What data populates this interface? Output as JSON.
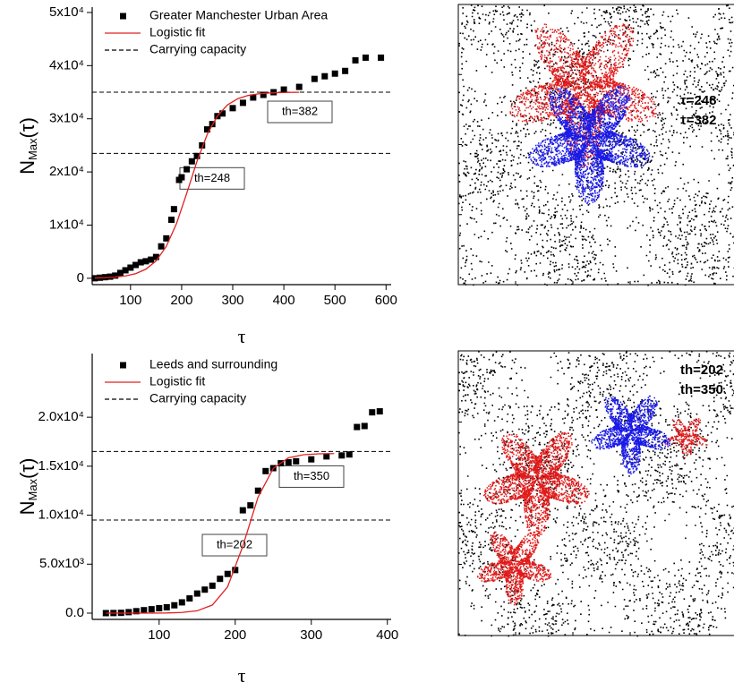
{
  "chart_data": [
    {
      "type": "scatter",
      "x_label": "τ",
      "y_label": "N",
      "y_label_sub": "Max",
      "y_label_suffix": "(τ)",
      "xlim": [
        25,
        610
      ],
      "ylim": [
        -1200,
        51000
      ],
      "xticks": [
        100,
        200,
        300,
        400,
        500,
        600
      ],
      "yticks": [
        {
          "value": 0,
          "label": "0"
        },
        {
          "value": 10000,
          "label": "1x10⁴"
        },
        {
          "value": 20000,
          "label": "2x10⁴"
        },
        {
          "value": 30000,
          "label": "3x10⁴"
        },
        {
          "value": 40000,
          "label": "4x10⁴"
        },
        {
          "value": 50000,
          "label": "5x10⁴"
        }
      ],
      "series": [
        {
          "name": "Greater Manchester Urban Area",
          "color": "#000000",
          "marker": "square",
          "x": [
            30,
            40,
            50,
            60,
            70,
            80,
            90,
            100,
            110,
            120,
            130,
            140,
            150,
            160,
            170,
            180,
            185,
            195,
            200,
            210,
            220,
            230,
            240,
            250,
            260,
            270,
            280,
            300,
            320,
            340,
            360,
            380,
            400,
            430,
            460,
            480,
            500,
            520,
            540,
            560,
            590
          ],
          "values": [
            0,
            100,
            200,
            300,
            500,
            1000,
            1500,
            2000,
            2500,
            3000,
            3200,
            3500,
            4000,
            6000,
            7500,
            11000,
            13000,
            18500,
            19000,
            20500,
            22000,
            23000,
            25000,
            28000,
            29000,
            30500,
            31000,
            32000,
            33000,
            34000,
            34500,
            35000,
            35500,
            36000,
            37500,
            38000,
            38500,
            39000,
            41000,
            41500,
            41500
          ]
        },
        {
          "name": "Logistic fit",
          "color": "#e02020",
          "marker": "line",
          "x": [
            30,
            50,
            70,
            90,
            110,
            130,
            150,
            170,
            190,
            210,
            230,
            250,
            270,
            290,
            310,
            330,
            350,
            370,
            390,
            410,
            430
          ],
          "values": [
            54,
            108,
            218,
            435,
            864,
            1700,
            3262,
            6003,
            10294,
            15982,
            21985,
            27049,
            30541,
            32637,
            33784,
            34385,
            34691,
            34847,
            34923,
            34962,
            34981
          ]
        }
      ],
      "reference_lines": {
        "name": "Carrying capacity",
        "color": "#000000",
        "values": [
          35000,
          23500
        ]
      },
      "annotations": [
        "th=382",
        "th=248"
      ]
    },
    {
      "type": "scatter",
      "x_label": "τ",
      "y_label": "N",
      "y_label_sub": "Max",
      "y_label_suffix": "(τ)",
      "xlim": [
        12,
        405
      ],
      "ylim": [
        -640,
        26500
      ],
      "xticks": [
        100,
        200,
        300,
        400
      ],
      "yticks": [
        {
          "value": 0,
          "label": "0.0"
        },
        {
          "value": 5000,
          "label": "5.0x10³"
        },
        {
          "value": 10000,
          "label": "1.0x10⁴"
        },
        {
          "value": 15000,
          "label": "1.5x10⁴"
        },
        {
          "value": 20000,
          "label": "2.0x10⁴"
        }
      ],
      "series": [
        {
          "name": "Leeds and surrounding",
          "color": "#000000",
          "marker": "square",
          "x": [
            30,
            40,
            50,
            60,
            70,
            80,
            90,
            100,
            110,
            120,
            130,
            140,
            150,
            160,
            170,
            180,
            190,
            200,
            210,
            220,
            230,
            240,
            250,
            260,
            270,
            280,
            300,
            320,
            340,
            350,
            360,
            370,
            380,
            390
          ],
          "values": [
            0,
            10,
            30,
            100,
            200,
            300,
            400,
            500,
            600,
            800,
            1100,
            1500,
            2000,
            2400,
            2800,
            3500,
            4000,
            4400,
            10500,
            11000,
            12500,
            14500,
            14800,
            15300,
            15400,
            15500,
            15700,
            16000,
            16100,
            16200,
            19000,
            19100,
            20500,
            20600
          ]
        },
        {
          "name": "Logistic fit",
          "color": "#e02020",
          "marker": "line",
          "x": [
            30,
            50,
            70,
            90,
            110,
            130,
            150,
            170,
            190,
            210,
            230,
            250,
            270,
            290,
            310,
            330
          ],
          "values": [
            0,
            0,
            1.3,
            4.8,
            17.7,
            65,
            235,
            831,
            2681,
            6837,
            11837,
            14778,
            15856,
            16177,
            16266,
            16291
          ]
        }
      ],
      "reference_lines": {
        "name": "Carrying capacity",
        "color": "#000000",
        "values": [
          16500,
          9500
        ]
      },
      "annotations": [
        "th=350",
        "th=202"
      ]
    }
  ],
  "maps": [
    {
      "labels": [
        {
          "text": "τ=248",
          "color": "#1a1ae6"
        },
        {
          "text": "τ=382",
          "color": "#e01a1a"
        }
      ]
    },
    {
      "labels": [
        {
          "text": "th=202",
          "color": "#1a1ae6"
        },
        {
          "text": "th=350",
          "color": "#e01a1a"
        }
      ]
    }
  ]
}
